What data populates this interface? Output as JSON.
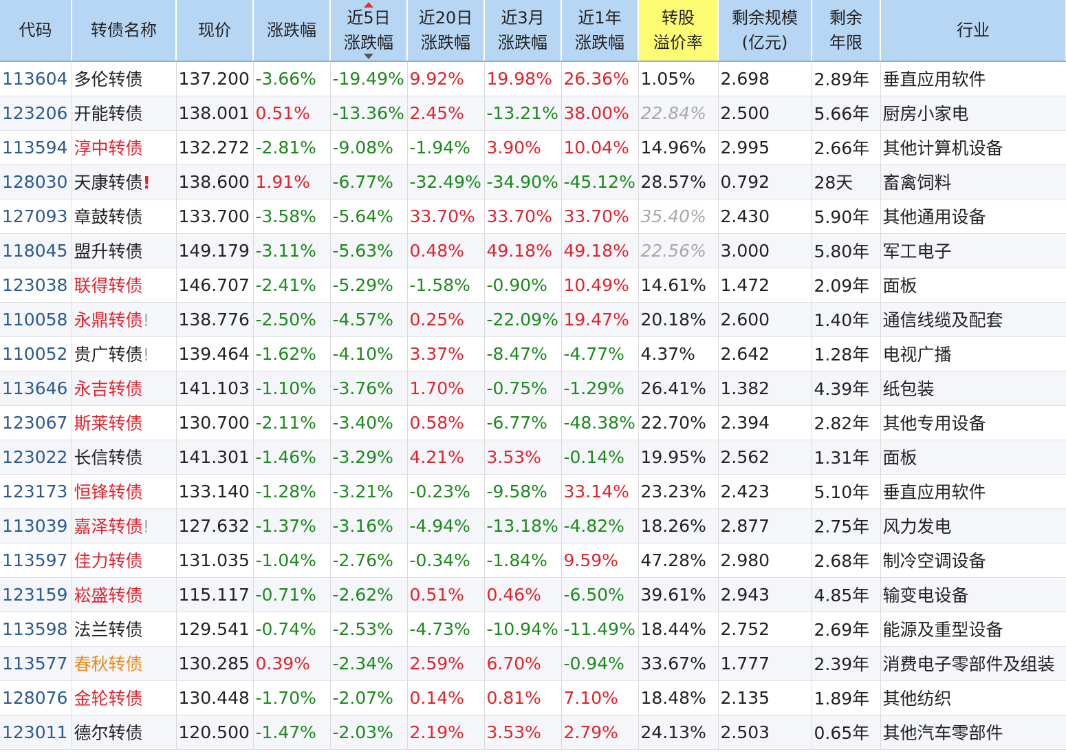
{
  "columns": [
    {
      "lines": [
        "代码"
      ]
    },
    {
      "lines": [
        "转债名称"
      ]
    },
    {
      "lines": [
        "现价"
      ]
    },
    {
      "lines": [
        "涨跌幅"
      ]
    },
    {
      "lines": [
        "近5日",
        "涨跌幅"
      ],
      "sorted": true
    },
    {
      "lines": [
        "近20日",
        "涨跌幅"
      ]
    },
    {
      "lines": [
        "近3月",
        "涨跌幅"
      ]
    },
    {
      "lines": [
        "近1年",
        "涨跌幅"
      ]
    },
    {
      "lines": [
        "转股",
        "溢价率"
      ],
      "highlight": true
    },
    {
      "lines": [
        "剩余规模",
        "(亿元)"
      ]
    },
    {
      "lines": [
        "剩余",
        "年限"
      ]
    },
    {
      "lines": [
        "行业"
      ]
    }
  ],
  "colors": {
    "up": "#e3232c",
    "down": "#1b8a1b",
    "link": "#2b5a93",
    "header_bg": "#b7d6f3",
    "highlight_bg": "#fdfc72",
    "orange": "#f08a18"
  },
  "rows": [
    {
      "code": "113604",
      "name": "多伦转债",
      "name_color": "black",
      "flag": "",
      "price": "137.200",
      "chg": "-3.66%",
      "chg5": "-19.49%",
      "chg20": "9.92%",
      "chg3m": "19.98%",
      "chg1y": "26.36%",
      "premium": "1.05%",
      "premium_gray": false,
      "size": "2.698",
      "years": "2.89年",
      "industry": "垂直应用软件"
    },
    {
      "code": "123206",
      "name": "开能转债",
      "name_color": "black",
      "flag": "",
      "price": "138.001",
      "chg": "0.51%",
      "chg5": "-13.36%",
      "chg20": "2.45%",
      "chg3m": "-13.21%",
      "chg1y": "38.00%",
      "premium": "22.84%",
      "premium_gray": true,
      "size": "2.500",
      "years": "5.66年",
      "industry": "厨房小家电"
    },
    {
      "code": "113594",
      "name": "淳中转债",
      "name_color": "red",
      "flag": "",
      "price": "132.272",
      "chg": "-2.81%",
      "chg5": "-9.08%",
      "chg20": "-1.94%",
      "chg3m": "3.90%",
      "chg1y": "10.04%",
      "premium": "14.96%",
      "premium_gray": false,
      "size": "2.995",
      "years": "2.66年",
      "industry": "其他计算机设备"
    },
    {
      "code": "128030",
      "name": "天康转债",
      "name_color": "black",
      "flag": "red",
      "price": "138.600",
      "chg": "1.91%",
      "chg5": "-6.77%",
      "chg20": "-32.49%",
      "chg3m": "-34.90%",
      "chg1y": "-45.12%",
      "premium": "28.57%",
      "premium_gray": false,
      "size": "0.792",
      "years": "28天",
      "industry": "畜禽饲料"
    },
    {
      "code": "127093",
      "name": "章鼓转债",
      "name_color": "black",
      "flag": "",
      "price": "133.700",
      "chg": "-3.58%",
      "chg5": "-5.64%",
      "chg20": "33.70%",
      "chg3m": "33.70%",
      "chg1y": "33.70%",
      "premium": "35.40%",
      "premium_gray": true,
      "size": "2.430",
      "years": "5.90年",
      "industry": "其他通用设备"
    },
    {
      "code": "118045",
      "name": "盟升转债",
      "name_color": "black",
      "flag": "",
      "price": "149.179",
      "chg": "-3.11%",
      "chg5": "-5.63%",
      "chg20": "0.48%",
      "chg3m": "49.18%",
      "chg1y": "49.18%",
      "premium": "22.56%",
      "premium_gray": true,
      "size": "3.000",
      "years": "5.80年",
      "industry": "军工电子"
    },
    {
      "code": "123038",
      "name": "联得转债",
      "name_color": "red",
      "flag": "",
      "price": "146.707",
      "chg": "-2.41%",
      "chg5": "-5.29%",
      "chg20": "-1.58%",
      "chg3m": "-0.90%",
      "chg1y": "10.49%",
      "premium": "14.61%",
      "premium_gray": false,
      "size": "1.472",
      "years": "2.09年",
      "industry": "面板"
    },
    {
      "code": "110058",
      "name": "永鼎转债",
      "name_color": "red",
      "flag": "gray",
      "price": "138.776",
      "chg": "-2.50%",
      "chg5": "-4.57%",
      "chg20": "0.25%",
      "chg3m": "-22.09%",
      "chg1y": "19.47%",
      "premium": "20.18%",
      "premium_gray": false,
      "size": "2.600",
      "years": "1.40年",
      "industry": "通信线缆及配套"
    },
    {
      "code": "110052",
      "name": "贵广转债",
      "name_color": "black",
      "flag": "gray",
      "price": "139.464",
      "chg": "-1.62%",
      "chg5": "-4.10%",
      "chg20": "3.37%",
      "chg3m": "-8.47%",
      "chg1y": "-4.77%",
      "premium": "4.37%",
      "premium_gray": false,
      "size": "2.642",
      "years": "1.28年",
      "industry": "电视广播"
    },
    {
      "code": "113646",
      "name": "永吉转债",
      "name_color": "red",
      "flag": "",
      "price": "141.103",
      "chg": "-1.10%",
      "chg5": "-3.76%",
      "chg20": "1.70%",
      "chg3m": "-0.75%",
      "chg1y": "-1.29%",
      "premium": "26.41%",
      "premium_gray": false,
      "size": "1.382",
      "years": "4.39年",
      "industry": "纸包装"
    },
    {
      "code": "123067",
      "name": "斯莱转债",
      "name_color": "red",
      "flag": "",
      "price": "130.700",
      "chg": "-2.11%",
      "chg5": "-3.40%",
      "chg20": "0.58%",
      "chg3m": "-6.77%",
      "chg1y": "-48.38%",
      "premium": "22.70%",
      "premium_gray": false,
      "size": "2.394",
      "years": "2.82年",
      "industry": "其他专用设备"
    },
    {
      "code": "123022",
      "name": "长信转债",
      "name_color": "black",
      "flag": "",
      "price": "141.301",
      "chg": "-1.46%",
      "chg5": "-3.29%",
      "chg20": "4.21%",
      "chg3m": "3.53%",
      "chg1y": "-0.14%",
      "premium": "19.95%",
      "premium_gray": false,
      "size": "2.562",
      "years": "1.31年",
      "industry": "面板"
    },
    {
      "code": "123173",
      "name": "恒锋转债",
      "name_color": "red",
      "flag": "",
      "price": "133.140",
      "chg": "-1.28%",
      "chg5": "-3.21%",
      "chg20": "-0.23%",
      "chg3m": "-9.58%",
      "chg1y": "33.14%",
      "premium": "23.23%",
      "premium_gray": false,
      "size": "2.423",
      "years": "5.10年",
      "industry": "垂直应用软件"
    },
    {
      "code": "113039",
      "name": "嘉泽转债",
      "name_color": "red",
      "flag": "gray",
      "price": "127.632",
      "chg": "-1.37%",
      "chg5": "-3.16%",
      "chg20": "-4.94%",
      "chg3m": "-13.18%",
      "chg1y": "-4.82%",
      "premium": "18.26%",
      "premium_gray": false,
      "size": "2.877",
      "years": "2.75年",
      "industry": "风力发电"
    },
    {
      "code": "113597",
      "name": "佳力转债",
      "name_color": "red",
      "flag": "",
      "price": "131.035",
      "chg": "-1.04%",
      "chg5": "-2.76%",
      "chg20": "-0.34%",
      "chg3m": "-1.84%",
      "chg1y": "9.59%",
      "premium": "47.28%",
      "premium_gray": false,
      "size": "2.980",
      "years": "2.68年",
      "industry": "制冷空调设备"
    },
    {
      "code": "123159",
      "name": "崧盛转债",
      "name_color": "red",
      "flag": "",
      "price": "115.117",
      "chg": "-0.71%",
      "chg5": "-2.62%",
      "chg20": "0.51%",
      "chg3m": "0.46%",
      "chg1y": "-6.50%",
      "premium": "39.61%",
      "premium_gray": false,
      "size": "2.943",
      "years": "4.85年",
      "industry": "输变电设备"
    },
    {
      "code": "113598",
      "name": "法兰转债",
      "name_color": "black",
      "flag": "",
      "price": "129.541",
      "chg": "-0.74%",
      "chg5": "-2.53%",
      "chg20": "-4.73%",
      "chg3m": "-10.94%",
      "chg1y": "-11.49%",
      "premium": "18.44%",
      "premium_gray": false,
      "size": "2.752",
      "years": "2.69年",
      "industry": "能源及重型设备"
    },
    {
      "code": "113577",
      "name": "春秋转债",
      "name_color": "orange",
      "flag": "",
      "price": "130.285",
      "chg": "0.39%",
      "chg5": "-2.34%",
      "chg20": "2.59%",
      "chg3m": "6.70%",
      "chg1y": "-0.94%",
      "premium": "33.67%",
      "premium_gray": false,
      "size": "1.777",
      "years": "2.39年",
      "industry": "消费电子零部件及组装"
    },
    {
      "code": "128076",
      "name": "金轮转债",
      "name_color": "red",
      "flag": "",
      "price": "130.448",
      "chg": "-1.70%",
      "chg5": "-2.07%",
      "chg20": "0.14%",
      "chg3m": "0.81%",
      "chg1y": "7.10%",
      "premium": "18.48%",
      "premium_gray": false,
      "size": "2.135",
      "years": "1.89年",
      "industry": "其他纺织"
    },
    {
      "code": "123011",
      "name": "德尔转债",
      "name_color": "black",
      "flag": "",
      "price": "120.500",
      "chg": "-1.47%",
      "chg5": "-2.03%",
      "chg20": "2.19%",
      "chg3m": "3.53%",
      "chg1y": "2.79%",
      "premium": "24.13%",
      "premium_gray": false,
      "size": "2.503",
      "years": "0.65年",
      "industry": "其他汽车零部件"
    }
  ]
}
